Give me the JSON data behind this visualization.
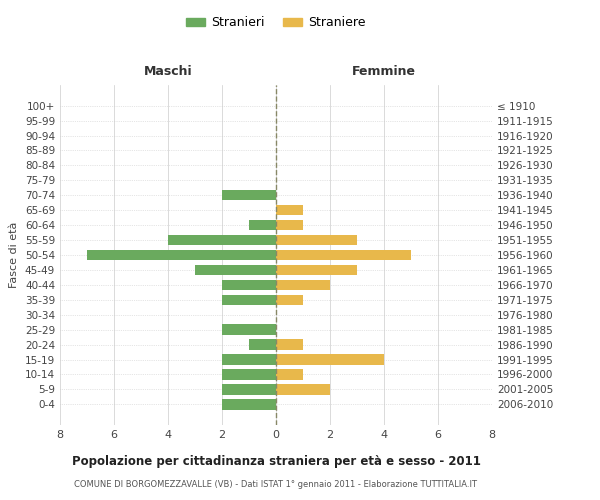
{
  "age_groups": [
    "100+",
    "95-99",
    "90-94",
    "85-89",
    "80-84",
    "75-79",
    "70-74",
    "65-69",
    "60-64",
    "55-59",
    "50-54",
    "45-49",
    "40-44",
    "35-39",
    "30-34",
    "25-29",
    "20-24",
    "15-19",
    "10-14",
    "5-9",
    "0-4"
  ],
  "birth_years": [
    "≤ 1910",
    "1911-1915",
    "1916-1920",
    "1921-1925",
    "1926-1930",
    "1931-1935",
    "1936-1940",
    "1941-1945",
    "1946-1950",
    "1951-1955",
    "1956-1960",
    "1961-1965",
    "1966-1970",
    "1971-1975",
    "1976-1980",
    "1981-1985",
    "1986-1990",
    "1991-1995",
    "1996-2000",
    "2001-2005",
    "2006-2010"
  ],
  "maschi": [
    0,
    0,
    0,
    0,
    0,
    0,
    2,
    0,
    1,
    4,
    7,
    3,
    2,
    2,
    0,
    2,
    1,
    2,
    2,
    2,
    2
  ],
  "femmine": [
    0,
    0,
    0,
    0,
    0,
    0,
    0,
    1,
    1,
    3,
    5,
    3,
    2,
    1,
    0,
    0,
    1,
    4,
    1,
    2,
    0
  ],
  "male_color": "#6aaa5e",
  "female_color": "#e8b84b",
  "background_color": "#ffffff",
  "grid_color": "#cccccc",
  "center_line_color": "#888866",
  "xlim": 8,
  "title": "Popolazione per cittadinanza straniera per età e sesso - 2011",
  "subtitle": "COMUNE DI BORGOMEZZAVALLE (VB) - Dati ISTAT 1° gennaio 2011 - Elaborazione TUTTITALIA.IT",
  "ylabel_left": "Fasce di età",
  "legend_male": "Stranieri",
  "legend_female": "Straniere",
  "maschi_label": "Maschi",
  "femmine_label": "Femmine"
}
